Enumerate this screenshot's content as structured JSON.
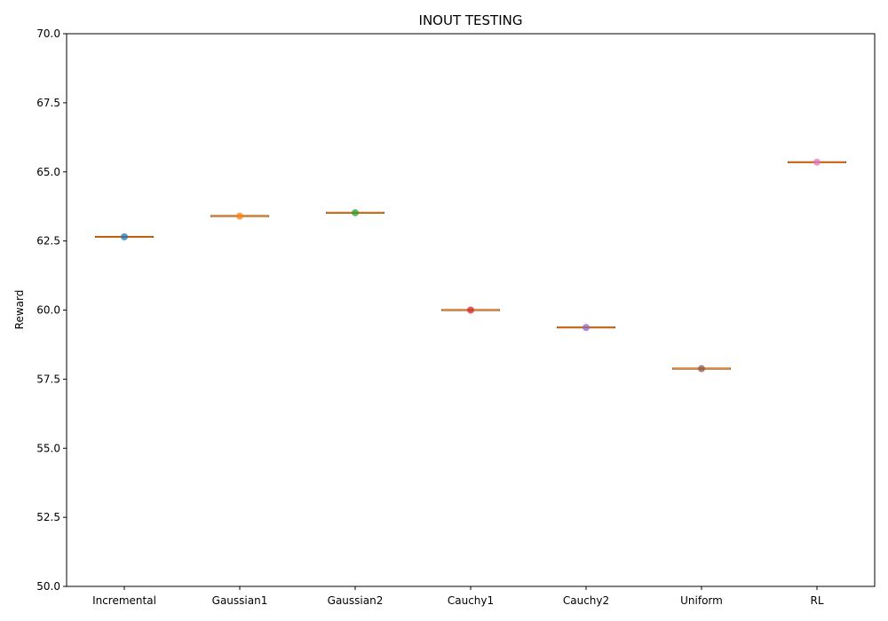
{
  "chart_data": {
    "type": "box",
    "title": "INOUT TESTING",
    "xlabel": "",
    "ylabel": "Reward",
    "ylim": [
      50.0,
      70.0
    ],
    "yticks": [
      "50.0",
      "52.5",
      "55.0",
      "57.5",
      "60.0",
      "62.5",
      "65.0",
      "67.5",
      "70.0"
    ],
    "categories": [
      "Incremental",
      "Gaussian1",
      "Gaussian2",
      "Cauchy1",
      "Cauchy2",
      "Uniform",
      "RL"
    ],
    "values": [
      62.65,
      63.4,
      63.52,
      60.0,
      59.37,
      57.88,
      65.35
    ],
    "point_colors": [
      "#1f77b4",
      "#ff7f0e",
      "#2ca02c",
      "#d62728",
      "#9467bd",
      "#8c564b",
      "#e377c2"
    ],
    "median_color": "#ff7f0e",
    "grid": false,
    "legend": "none"
  }
}
